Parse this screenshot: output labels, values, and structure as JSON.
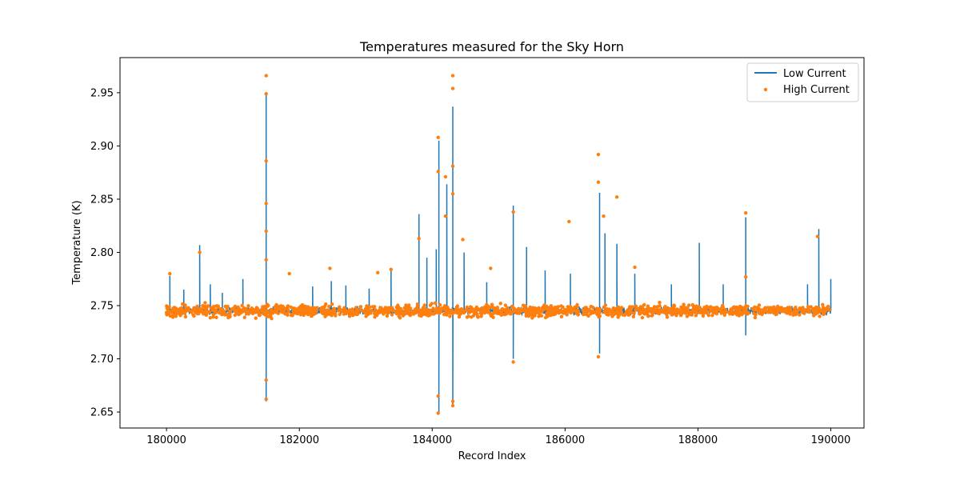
{
  "chart_data": {
    "type": "line",
    "title": "Temperatures measured for the Sky Horn",
    "xlabel": "Record Index",
    "ylabel": "Temperature (K)",
    "xlim": [
      179300,
      190500
    ],
    "ylim": [
      2.635,
      2.983
    ],
    "xticks": [
      180000,
      182000,
      184000,
      186000,
      188000,
      190000
    ],
    "yticks": [
      2.65,
      2.7,
      2.75,
      2.8,
      2.85,
      2.9,
      2.95
    ],
    "ytick_labels": [
      "2.65",
      "2.70",
      "2.75",
      "2.80",
      "2.85",
      "2.90",
      "2.95"
    ],
    "grid": false,
    "legend": "top-right",
    "baseline": 2.745,
    "series": [
      {
        "name": "Low Current",
        "style": "line",
        "color": "#1f77b4",
        "spikes": [
          [
            180050,
            2.778
          ],
          [
            180260,
            2.765
          ],
          [
            180500,
            2.807
          ],
          [
            180660,
            2.77
          ],
          [
            180840,
            2.762
          ],
          [
            181150,
            2.775
          ],
          [
            181500,
            2.95
          ],
          [
            181500,
            2.66
          ],
          [
            182200,
            2.768
          ],
          [
            182480,
            2.773
          ],
          [
            182700,
            2.769
          ],
          [
            183050,
            2.766
          ],
          [
            183380,
            2.783
          ],
          [
            183800,
            2.836
          ],
          [
            183920,
            2.795
          ],
          [
            184060,
            2.803
          ],
          [
            184100,
            2.905
          ],
          [
            184100,
            2.648
          ],
          [
            184220,
            2.864
          ],
          [
            184310,
            2.937
          ],
          [
            184310,
            2.655
          ],
          [
            184480,
            2.8
          ],
          [
            184820,
            2.772
          ],
          [
            185220,
            2.844
          ],
          [
            185220,
            2.7
          ],
          [
            185420,
            2.805
          ],
          [
            185700,
            2.783
          ],
          [
            186080,
            2.78
          ],
          [
            186520,
            2.856
          ],
          [
            186520,
            2.705
          ],
          [
            186600,
            2.818
          ],
          [
            186780,
            2.808
          ],
          [
            187050,
            2.78
          ],
          [
            187600,
            2.77
          ],
          [
            188020,
            2.809
          ],
          [
            188380,
            2.77
          ],
          [
            188720,
            2.833
          ],
          [
            188720,
            2.722
          ],
          [
            189650,
            2.77
          ],
          [
            189820,
            2.822
          ],
          [
            190000,
            2.775
          ]
        ]
      },
      {
        "name": "High Current",
        "style": "scatter",
        "color": "#ff7f0e",
        "outliers": [
          [
            180050,
            2.78
          ],
          [
            180500,
            2.8
          ],
          [
            181500,
            2.966
          ],
          [
            181500,
            2.949
          ],
          [
            181500,
            2.886
          ],
          [
            181500,
            2.846
          ],
          [
            181500,
            2.82
          ],
          [
            181500,
            2.793
          ],
          [
            181500,
            2.68
          ],
          [
            181500,
            2.662
          ],
          [
            181850,
            2.78
          ],
          [
            182460,
            2.785
          ],
          [
            183180,
            2.781
          ],
          [
            183380,
            2.784
          ],
          [
            183800,
            2.813
          ],
          [
            184090,
            2.908
          ],
          [
            184090,
            2.876
          ],
          [
            184090,
            2.665
          ],
          [
            184090,
            2.649
          ],
          [
            184200,
            2.871
          ],
          [
            184200,
            2.834
          ],
          [
            184310,
            2.966
          ],
          [
            184310,
            2.954
          ],
          [
            184310,
            2.881
          ],
          [
            184310,
            2.855
          ],
          [
            184310,
            2.66
          ],
          [
            184310,
            2.656
          ],
          [
            184460,
            2.812
          ],
          [
            184880,
            2.785
          ],
          [
            185220,
            2.838
          ],
          [
            185220,
            2.697
          ],
          [
            186060,
            2.829
          ],
          [
            186500,
            2.892
          ],
          [
            186500,
            2.866
          ],
          [
            186500,
            2.702
          ],
          [
            186580,
            2.834
          ],
          [
            186780,
            2.852
          ],
          [
            187050,
            2.786
          ],
          [
            188720,
            2.837
          ],
          [
            188720,
            2.777
          ],
          [
            189800,
            2.815
          ]
        ]
      }
    ]
  }
}
